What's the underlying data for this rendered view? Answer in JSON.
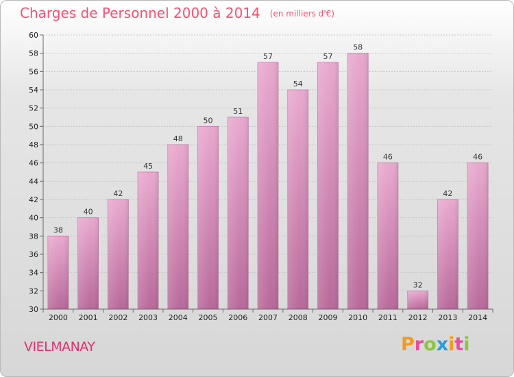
{
  "chart_data": {
    "type": "bar",
    "title": "Charges de Personnel 2000 à 2014",
    "subtitle": "(en milliers d'€)",
    "categories": [
      "2000",
      "2001",
      "2002",
      "2003",
      "2004",
      "2005",
      "2006",
      "2007",
      "2008",
      "2009",
      "2010",
      "2011",
      "2012",
      "2013",
      "2014"
    ],
    "values": [
      38,
      40,
      42,
      45,
      48,
      50,
      51,
      57,
      54,
      57,
      58,
      46,
      32,
      42,
      46
    ],
    "ylim": [
      30,
      60
    ],
    "yticks": [
      30,
      32,
      34,
      36,
      38,
      40,
      42,
      44,
      46,
      48,
      50,
      52,
      54,
      56,
      58,
      60
    ],
    "grid": true,
    "bar_color": "#d98fb8"
  },
  "footer": {
    "commune": "VIELMANAY",
    "logo_letters": [
      "P",
      "r",
      "o",
      "x",
      "i",
      "t",
      "i"
    ],
    "logo_colors": [
      "#f29b1d",
      "#e44f9b",
      "#8cc63f",
      "#2f9ad9",
      "#f29b1d",
      "#e44f9b",
      "#8cc63f"
    ]
  }
}
